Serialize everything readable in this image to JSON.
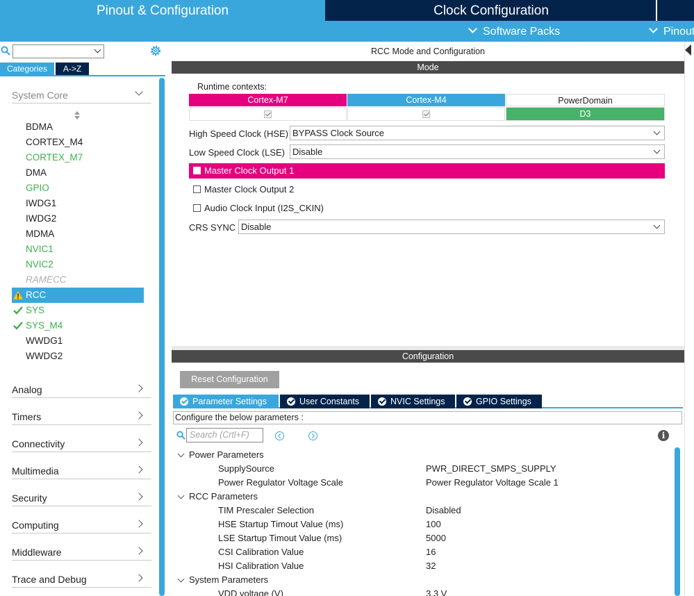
{
  "top_tabs": {
    "pinout": "Pinout & Configuration",
    "clock": "Clock Configuration"
  },
  "sub_bar": {
    "software_packs": "Software Packs",
    "pinout": "Pinout"
  },
  "left": {
    "search_value": "",
    "tabs": {
      "categories": "Categories",
      "az": "A->Z"
    },
    "system_core": "System Core",
    "peripherals": [
      {
        "label": "BDMA",
        "style": "black",
        "icon": ""
      },
      {
        "label": "CORTEX_M4",
        "style": "black",
        "icon": ""
      },
      {
        "label": "CORTEX_M7",
        "style": "green",
        "icon": ""
      },
      {
        "label": "DMA",
        "style": "black",
        "icon": ""
      },
      {
        "label": "GPIO",
        "style": "green",
        "icon": ""
      },
      {
        "label": "IWDG1",
        "style": "black",
        "icon": ""
      },
      {
        "label": "IWDG2",
        "style": "black",
        "icon": ""
      },
      {
        "label": "MDMA",
        "style": "black",
        "icon": ""
      },
      {
        "label": "NVIC1",
        "style": "green",
        "icon": ""
      },
      {
        "label": "NVIC2",
        "style": "green",
        "icon": ""
      },
      {
        "label": "RAMECC",
        "style": "grey",
        "icon": ""
      },
      {
        "label": "RCC",
        "style": "selected",
        "icon": "warning-icon"
      },
      {
        "label": "SYS",
        "style": "green",
        "icon": "check-icon"
      },
      {
        "label": "SYS_M4",
        "style": "green",
        "icon": "check-icon"
      },
      {
        "label": "WWDG1",
        "style": "black",
        "icon": ""
      },
      {
        "label": "WWDG2",
        "style": "black",
        "icon": ""
      }
    ],
    "sections": [
      "Analog",
      "Timers",
      "Connectivity",
      "Multimedia",
      "Security",
      "Computing",
      "Middleware",
      "Trace and Debug"
    ]
  },
  "mode": {
    "panel_title": "RCC Mode and Configuration",
    "bar_title": "Mode",
    "runtime_label": "Runtime contexts:",
    "contexts": {
      "m7": "Cortex-M7",
      "m4": "Cortex-M4",
      "power_domain": "PowerDomain",
      "d3": "D3"
    },
    "hse_label": "High Speed Clock (HSE)",
    "hse_value": "BYPASS Clock Source",
    "lse_label": "Low Speed Clock (LSE)",
    "lse_value": "Disable",
    "mco1": "Master Clock Output 1",
    "mco2": "Master Clock Output 2",
    "audio": "Audio Clock Input (I2S_CKIN)",
    "crs_label": "CRS SYNC",
    "crs_value": "Disable"
  },
  "config": {
    "bar_title": "Configuration",
    "reset_label": "Reset Configuration",
    "tabs": [
      "Parameter Settings",
      "User Constants",
      "NVIC Settings",
      "GPIO Settings"
    ],
    "configure_text": "Configure the below parameters :",
    "search_placeholder": "Search (Crtl+F)",
    "info": "i",
    "tree": [
      {
        "kind": "group",
        "label": "Power Parameters"
      },
      {
        "kind": "param",
        "label": "SupplySource",
        "value": "PWR_DIRECT_SMPS_SUPPLY"
      },
      {
        "kind": "param",
        "label": "Power Regulator Voltage Scale",
        "value": "Power Regulator Voltage Scale 1"
      },
      {
        "kind": "group",
        "label": "RCC Parameters"
      },
      {
        "kind": "param",
        "label": "TIM Prescaler Selection",
        "value": "Disabled"
      },
      {
        "kind": "param",
        "label": "HSE Startup Timout Value (ms)",
        "value": "100"
      },
      {
        "kind": "param",
        "label": "LSE Startup Timout Value (ms)",
        "value": "5000"
      },
      {
        "kind": "param",
        "label": "CSI Calibration Value",
        "value": "16"
      },
      {
        "kind": "param",
        "label": "HSI Calibration Value",
        "value": "32"
      },
      {
        "kind": "group",
        "label": "System Parameters"
      },
      {
        "kind": "param",
        "label": "VDD voltage (V)",
        "value": "3.3 V"
      }
    ]
  },
  "colors": {
    "accent_blue": "#39a7dc",
    "navy": "#03234b",
    "magenta": "#e6007e",
    "green": "#3cb04b",
    "d3_green": "#47b26a"
  }
}
